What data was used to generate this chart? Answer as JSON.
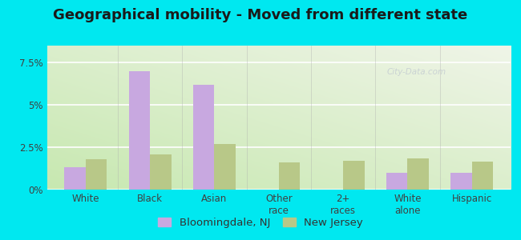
{
  "title": "Geographical mobility - Moved from different state",
  "categories": [
    "White",
    "Black",
    "Asian",
    "Other\nrace",
    "2+\nraces",
    "White\nalone",
    "Hispanic"
  ],
  "bloomingdale_values": [
    1.3,
    7.0,
    6.2,
    0.0,
    0.0,
    1.0,
    1.0
  ],
  "new_jersey_values": [
    1.8,
    2.1,
    2.7,
    1.6,
    1.7,
    1.85,
    1.65
  ],
  "bar_color_bloom": "#c8a8e0",
  "bar_color_nj": "#b8c888",
  "ylim": [
    0,
    8.5
  ],
  "yticks": [
    0,
    2.5,
    5.0,
    7.5
  ],
  "ytick_labels": [
    "0%",
    "2.5%",
    "5%",
    "7.5%"
  ],
  "legend_bloom": "Bloomingdale, NJ",
  "legend_nj": "New Jersey",
  "outer_background": "#00e8f0",
  "title_fontsize": 13,
  "tick_fontsize": 8.5,
  "legend_fontsize": 9.5
}
